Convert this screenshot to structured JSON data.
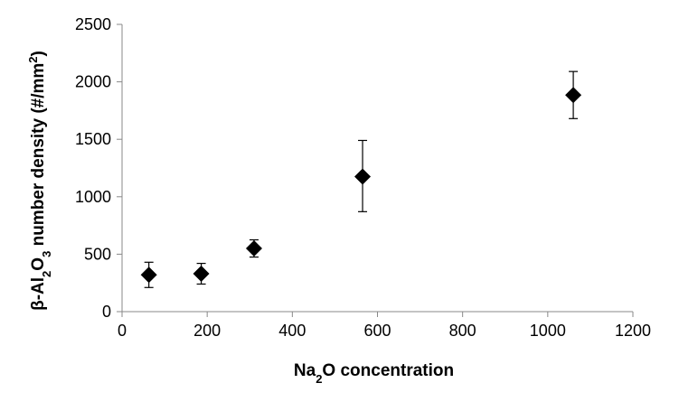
{
  "chart_data": {
    "type": "scatter",
    "xlabel_parts": [
      {
        "text": "Na",
        "style": "normal"
      },
      {
        "text": "2",
        "style": "sub"
      },
      {
        "text": "O concentration",
        "style": "normal"
      }
    ],
    "ylabel_parts": [
      {
        "text": "β-Al",
        "style": "normal"
      },
      {
        "text": "2",
        "style": "sub"
      },
      {
        "text": "O",
        "style": "normal"
      },
      {
        "text": "3",
        "style": "sub"
      },
      {
        "text": " number density (#/mm",
        "style": "normal"
      },
      {
        "text": "2",
        "style": "sup"
      },
      {
        "text": ")",
        "style": "normal"
      }
    ],
    "xlim": [
      0,
      1200
    ],
    "ylim": [
      0,
      2500
    ],
    "x_ticks": [
      0,
      200,
      400,
      600,
      800,
      1000,
      1200
    ],
    "y_ticks": [
      0,
      500,
      1000,
      1500,
      2000,
      2500
    ],
    "grid": false,
    "legend": "none",
    "marker": "diamond",
    "marker_color": "#000000",
    "points": [
      {
        "x": 63,
        "y": 320,
        "err_low": 110,
        "err_high": 110
      },
      {
        "x": 186,
        "y": 330,
        "err_low": 90,
        "err_high": 90
      },
      {
        "x": 310,
        "y": 550,
        "err_low": 75,
        "err_high": 75
      },
      {
        "x": 565,
        "y": 1175,
        "err_low": 305,
        "err_high": 315
      },
      {
        "x": 1060,
        "y": 1885,
        "err_low": 205,
        "err_high": 205
      }
    ]
  }
}
